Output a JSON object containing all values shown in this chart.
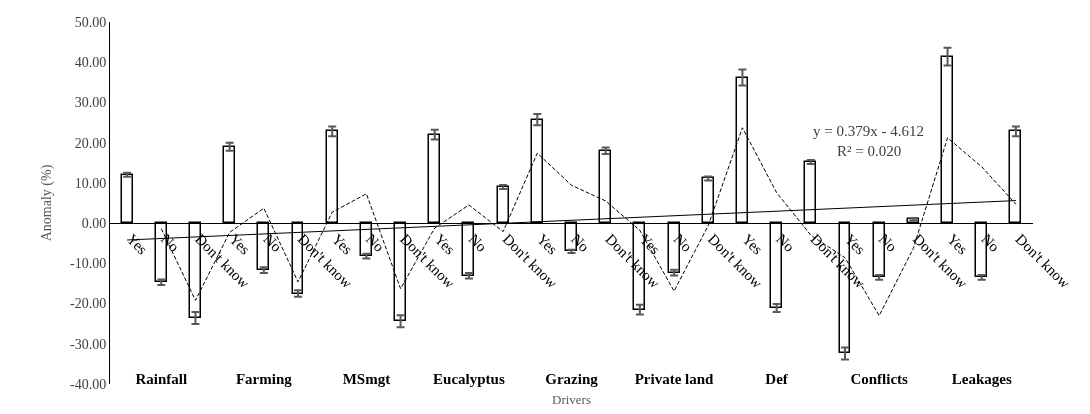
{
  "chart_data": {
    "type": "bar",
    "xlabel": "Drivers",
    "ylabel": "Anomaly (%)",
    "categories": [
      "Yes",
      "No",
      "Don't know",
      "Yes",
      "No",
      "Don't know",
      "Yes",
      "No",
      "Don't know",
      "Yes",
      "No",
      "Don't know",
      "Yes",
      "No",
      "Don't know",
      "Yes",
      "No",
      "Don't know",
      "Yes",
      "No",
      "Don't know",
      "Yes",
      "No",
      "Don't know",
      "Yes",
      "No",
      "Don't know"
    ],
    "series": [
      {
        "color": "#ffffff",
        "values": [
          12.0,
          -14.7,
          -23.6,
          19.0,
          -11.7,
          -17.5,
          22.8,
          -8.2,
          -24.4,
          22.0,
          -13.1,
          9.0,
          25.7,
          -7.0,
          18.0,
          -21.5,
          -12.3,
          11.1,
          36.2,
          -21.1,
          15.2,
          -32.4,
          -13.5,
          1.0,
          41.4,
          -13.5,
          22.8
        ],
        "errors": [
          0.5,
          0.7,
          1.5,
          1.0,
          0.7,
          0.8,
          1.2,
          0.6,
          1.5,
          1.2,
          0.7,
          0.5,
          1.4,
          0.4,
          0.8,
          1.2,
          0.7,
          0.5,
          2.0,
          1.0,
          0.5,
          1.5,
          0.6,
          0.3,
          2.2,
          0.6,
          1.2
        ]
      },
      {
        "type": "line",
        "color": "#000000",
        "line_style": "dashed",
        "values": [
          null,
          -1.4,
          -19.2,
          -2.3,
          3.7,
          -14.6,
          2.7,
          7.3,
          -16.3,
          -1.2,
          4.5,
          -2.1,
          17.4,
          9.4,
          5.5,
          -1.8,
          -16.9,
          -0.6,
          23.7,
          7.6,
          -3.0,
          -8.6,
          -23.0,
          -6.3,
          21.2,
          14.0,
          4.7
        ]
      },
      {
        "type": "line",
        "color": "#000000",
        "line_style": "solid",
        "values": [
          -4.2,
          null,
          null,
          null,
          null,
          null,
          null,
          null,
          null,
          null,
          null,
          null,
          null,
          null,
          null,
          null,
          null,
          null,
          null,
          null,
          null,
          null,
          null,
          null,
          null,
          null,
          5.6
        ]
      }
    ],
    "annotations": [
      "Rainfall",
      "Farming",
      "MSmgt",
      "Eucalyptus",
      "Grazing",
      "Private land",
      "Def",
      "Conflicts",
      "Leakages",
      "y = 0.379x - 4.612",
      "R² = 0.020"
    ],
    "ylim": [
      -40,
      50
    ],
    "yticks": [
      {
        "value": -40,
        "label": "-40.00"
      },
      {
        "value": -30,
        "label": "-30.00"
      },
      {
        "value": -20,
        "label": "-20.00"
      },
      {
        "value": -10,
        "label": "-10.00"
      },
      {
        "value": 0,
        "label": "0.00"
      },
      {
        "value": 10,
        "label": "10.00"
      },
      {
        "value": 20,
        "label": "20.00"
      },
      {
        "value": 30,
        "label": "30.00"
      },
      {
        "value": 40,
        "label": "40.00"
      },
      {
        "value": 50,
        "label": "50.00"
      }
    ],
    "grid": false,
    "legend": false,
    "marker": "none"
  }
}
